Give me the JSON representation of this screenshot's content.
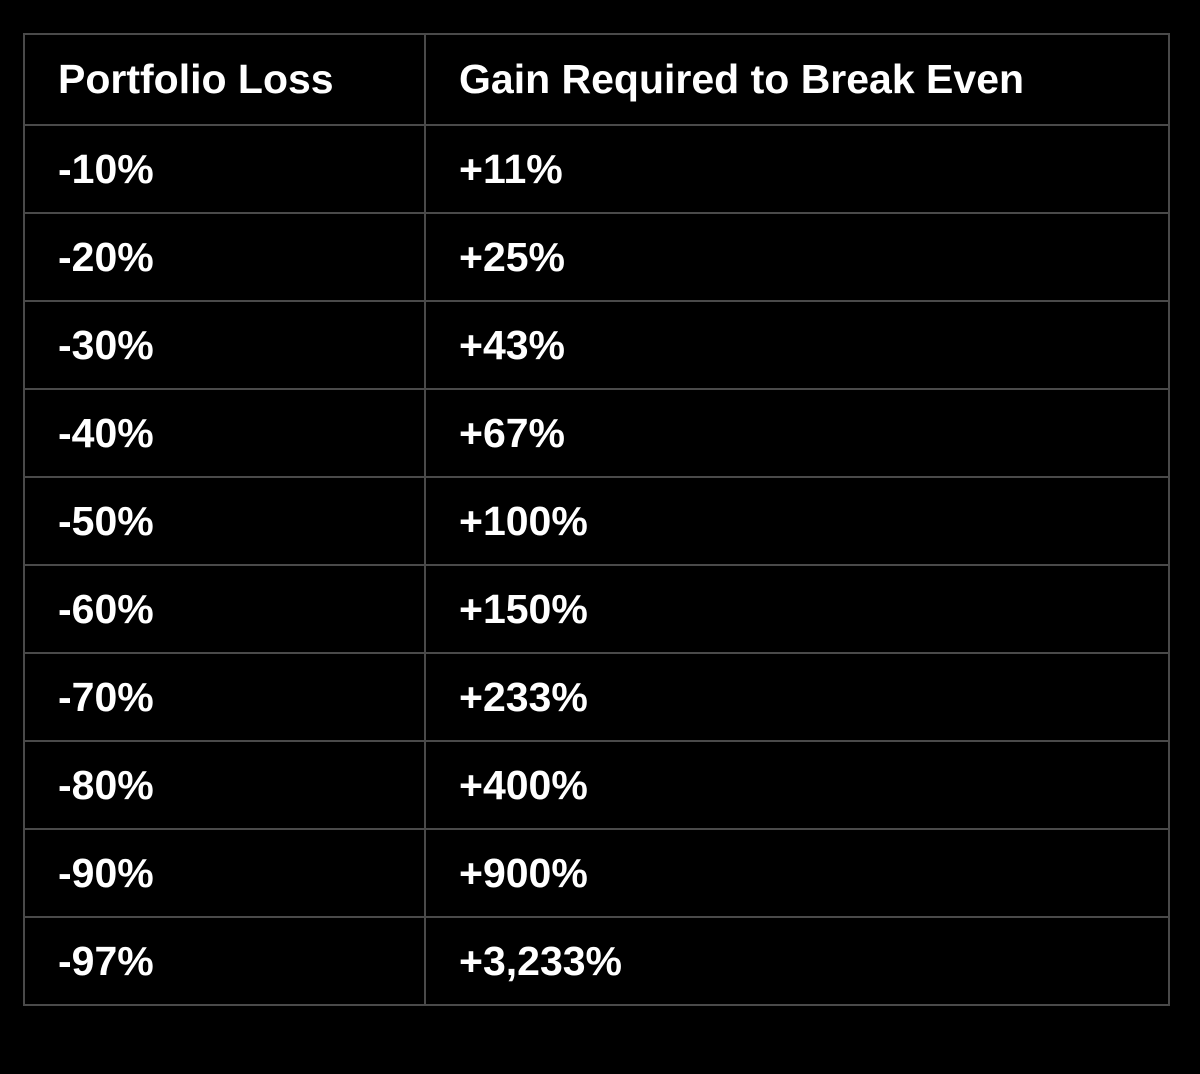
{
  "table": {
    "header": [
      "Portfolio Loss",
      "Gain Required to Break Even"
    ],
    "rows": [
      [
        "-10%",
        "+11%"
      ],
      [
        "-20%",
        "+25%"
      ],
      [
        "-30%",
        "+43%"
      ],
      [
        "-40%",
        "+67%"
      ],
      [
        "-50%",
        "+100%"
      ],
      [
        "-60%",
        "+150%"
      ],
      [
        "-70%",
        "+233%"
      ],
      [
        "-80%",
        "+400%"
      ],
      [
        "-90%",
        "+900%"
      ],
      [
        "-97%",
        "+3,233%"
      ]
    ]
  }
}
